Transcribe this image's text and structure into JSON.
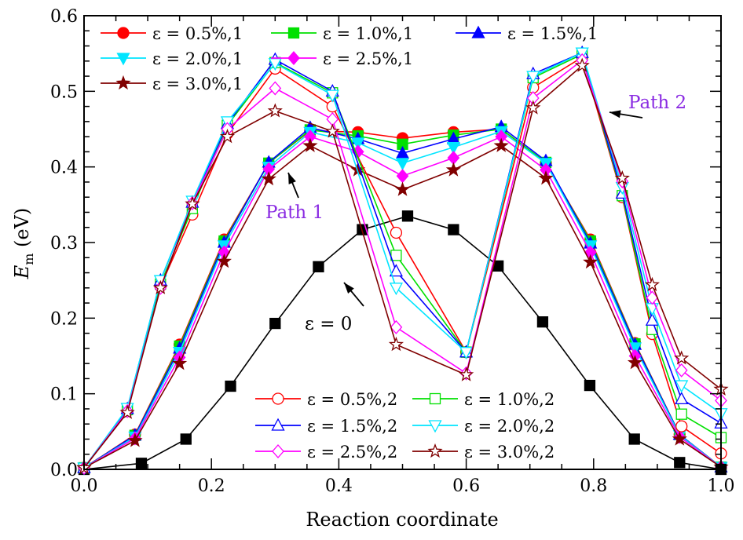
{
  "chart_data": {
    "type": "line",
    "xlabel": "Reaction coordinate",
    "ylabel": "E",
    "ylabel_subscript": "m",
    "ylabel_unit": " (eV)",
    "xlim": [
      0,
      1.0
    ],
    "ylim": [
      0,
      0.6
    ],
    "xticks": [
      "0.0",
      "0.2",
      "0.4",
      "0.6",
      "0.8",
      "1.0"
    ],
    "yticks": [
      "0.0",
      "0.1",
      "0.2",
      "0.3",
      "0.4",
      "0.5",
      "0.6"
    ],
    "grid": false,
    "colors": {
      "red": "#ff0000",
      "green": "#00e000",
      "blue": "#0000ff",
      "cyan": "#00e5ff",
      "magenta": "#ff00ff",
      "darkred": "#800000",
      "black": "#000000",
      "annotation": "#8a2be2"
    },
    "annotations": [
      {
        "text": "Path 1",
        "color": "#8a2be2"
      },
      {
        "text": "Path 2",
        "color": "#8a2be2"
      },
      {
        "text": "ε = 0",
        "color": "#000000"
      }
    ],
    "series": [
      {
        "name": "ε = 0.5%,1",
        "color": "#ff0000",
        "marker": "circle",
        "filled": true,
        "legend": 1,
        "x": [
          0,
          0.08,
          0.15,
          0.22,
          0.29,
          0.355,
          0.43,
          0.5,
          0.58,
          0.655,
          0.725,
          0.795,
          0.865,
          0.935,
          1.0
        ],
        "y": [
          0.002,
          0.046,
          0.165,
          0.304,
          0.405,
          0.448,
          0.446,
          0.438,
          0.446,
          0.45,
          0.405,
          0.304,
          0.167,
          0.046,
          0.003
        ]
      },
      {
        "name": "ε = 1.0%,1",
        "color": "#00e000",
        "marker": "square",
        "filled": true,
        "legend": 1,
        "x": [
          0,
          0.08,
          0.15,
          0.22,
          0.29,
          0.355,
          0.43,
          0.5,
          0.58,
          0.655,
          0.725,
          0.795,
          0.865,
          0.935,
          1.0
        ],
        "y": [
          0.002,
          0.045,
          0.163,
          0.302,
          0.405,
          0.449,
          0.441,
          0.43,
          0.442,
          0.45,
          0.406,
          0.302,
          0.166,
          0.046,
          0.003
        ]
      },
      {
        "name": "ε = 1.5%,1",
        "color": "#0000ff",
        "marker": "triangle-up",
        "filled": true,
        "legend": 1,
        "x": [
          0,
          0.08,
          0.15,
          0.22,
          0.29,
          0.355,
          0.43,
          0.5,
          0.58,
          0.655,
          0.725,
          0.795,
          0.865,
          0.935,
          1.0
        ],
        "y": [
          0.002,
          0.045,
          0.16,
          0.3,
          0.406,
          0.452,
          0.437,
          0.418,
          0.437,
          0.453,
          0.408,
          0.299,
          0.165,
          0.046,
          0.003
        ]
      },
      {
        "name": "ε = 2.0%,1",
        "color": "#00e5ff",
        "marker": "triangle-down",
        "filled": true,
        "legend": 1,
        "x": [
          0,
          0.08,
          0.15,
          0.22,
          0.29,
          0.355,
          0.43,
          0.5,
          0.58,
          0.655,
          0.725,
          0.795,
          0.865,
          0.935,
          1.0
        ],
        "y": [
          0.002,
          0.043,
          0.155,
          0.296,
          0.4,
          0.446,
          0.432,
          0.405,
          0.426,
          0.447,
          0.405,
          0.296,
          0.161,
          0.045,
          0.003
        ]
      },
      {
        "name": "ε = 2.5%,1",
        "color": "#ff00ff",
        "marker": "diamond",
        "filled": true,
        "legend": 1,
        "x": [
          0,
          0.08,
          0.15,
          0.22,
          0.29,
          0.355,
          0.43,
          0.5,
          0.58,
          0.655,
          0.725,
          0.795,
          0.865,
          0.935,
          1.0
        ],
        "y": [
          0.002,
          0.041,
          0.148,
          0.287,
          0.397,
          0.44,
          0.42,
          0.388,
          0.412,
          0.44,
          0.396,
          0.287,
          0.15,
          0.043,
          0.003
        ]
      },
      {
        "name": "ε = 3.0%,1",
        "color": "#800000",
        "marker": "star",
        "filled": true,
        "legend": 1,
        "x": [
          0,
          0.08,
          0.15,
          0.22,
          0.29,
          0.355,
          0.43,
          0.5,
          0.58,
          0.655,
          0.725,
          0.795,
          0.865,
          0.935,
          1.0
        ],
        "y": [
          0.002,
          0.038,
          0.14,
          0.275,
          0.384,
          0.428,
          0.396,
          0.37,
          0.396,
          0.428,
          0.385,
          0.274,
          0.141,
          0.04,
          0.003
        ]
      },
      {
        "name": "ε = 0",
        "color": "#000000",
        "marker": "square",
        "filled": true,
        "legend": 0,
        "x": [
          0,
          0.09,
          0.16,
          0.23,
          0.3,
          0.368,
          0.437,
          0.508,
          0.58,
          0.65,
          0.72,
          0.794,
          0.864,
          0.935,
          1.0
        ],
        "y": [
          0,
          0.008,
          0.04,
          0.11,
          0.193,
          0.268,
          0.317,
          0.335,
          0.317,
          0.269,
          0.195,
          0.111,
          0.04,
          0.009,
          0
        ]
      },
      {
        "name": "ε = 0.5%,2",
        "color": "#ff0000",
        "marker": "circle",
        "filled": false,
        "legend": 2,
        "x": [
          0,
          0.068,
          0.12,
          0.17,
          0.225,
          0.3,
          0.39,
          0.49,
          0.6,
          0.705,
          0.782,
          0.845,
          0.892,
          0.938,
          1.0
        ],
        "y": [
          0.002,
          0.077,
          0.242,
          0.337,
          0.444,
          0.53,
          0.48,
          0.313,
          0.155,
          0.505,
          0.545,
          0.36,
          0.179,
          0.057,
          0.021
        ]
      },
      {
        "name": "ε = 1.0%,2",
        "color": "#00e000",
        "marker": "square",
        "filled": false,
        "legend": 2,
        "x": [
          0,
          0.068,
          0.12,
          0.17,
          0.225,
          0.3,
          0.39,
          0.49,
          0.6,
          0.705,
          0.782,
          0.845,
          0.892,
          0.938,
          1.0
        ],
        "y": [
          0.002,
          0.079,
          0.245,
          0.345,
          0.455,
          0.538,
          0.498,
          0.283,
          0.155,
          0.518,
          0.549,
          0.362,
          0.185,
          0.073,
          0.042
        ]
      },
      {
        "name": "ε = 1.5%,2",
        "color": "#0000ff",
        "marker": "triangle-up",
        "filled": false,
        "legend": 2,
        "x": [
          0,
          0.068,
          0.12,
          0.17,
          0.225,
          0.3,
          0.39,
          0.49,
          0.6,
          0.705,
          0.782,
          0.845,
          0.892,
          0.938,
          1.0
        ],
        "y": [
          0.002,
          0.08,
          0.25,
          0.353,
          0.457,
          0.542,
          0.5,
          0.262,
          0.155,
          0.523,
          0.551,
          0.365,
          0.197,
          0.093,
          0.061
        ]
      },
      {
        "name": "ε = 2.0%,2",
        "color": "#00e5ff",
        "marker": "triangle-down",
        "filled": false,
        "legend": 2,
        "x": [
          0,
          0.068,
          0.12,
          0.17,
          0.225,
          0.3,
          0.39,
          0.49,
          0.6,
          0.705,
          0.782,
          0.845,
          0.892,
          0.938,
          1.0
        ],
        "y": [
          0.002,
          0.081,
          0.25,
          0.355,
          0.46,
          0.537,
          0.495,
          0.24,
          0.155,
          0.52,
          0.551,
          0.373,
          0.213,
          0.111,
          0.074
        ]
      },
      {
        "name": "ε = 2.5%,2",
        "color": "#ff00ff",
        "marker": "diamond",
        "filled": false,
        "legend": 2,
        "x": [
          0,
          0.068,
          0.12,
          0.17,
          0.225,
          0.3,
          0.39,
          0.49,
          0.6,
          0.705,
          0.782,
          0.845,
          0.892,
          0.938,
          1.0
        ],
        "y": [
          0.002,
          0.077,
          0.24,
          0.352,
          0.45,
          0.504,
          0.463,
          0.188,
          0.127,
          0.491,
          0.541,
          0.381,
          0.227,
          0.131,
          0.091
        ]
      },
      {
        "name": "ε = 3.0%,2",
        "color": "#800000",
        "marker": "star",
        "filled": false,
        "legend": 2,
        "x": [
          0,
          0.068,
          0.12,
          0.17,
          0.225,
          0.3,
          0.39,
          0.49,
          0.6,
          0.705,
          0.782,
          0.845,
          0.892,
          0.938,
          1.0
        ],
        "y": [
          0.002,
          0.075,
          0.24,
          0.351,
          0.44,
          0.474,
          0.447,
          0.165,
          0.125,
          0.478,
          0.534,
          0.385,
          0.244,
          0.147,
          0.106
        ]
      }
    ]
  }
}
